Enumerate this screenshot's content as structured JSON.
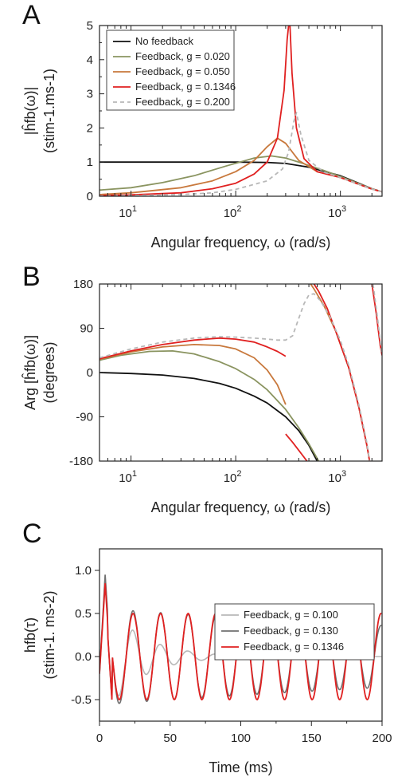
{
  "chart_data": [
    {
      "panel": "A",
      "type": "line",
      "xscale": "log",
      "xlim": [
        5,
        2500
      ],
      "ylim": [
        0,
        5
      ],
      "xlabel": "Angular frequency, ω (rad/s)",
      "ylabel_lines": [
        "|ĥfb(ω)|",
        "(stim-1.ms-1)"
      ],
      "xticks": [
        {
          "v": 10,
          "base": "10",
          "exp": "1"
        },
        {
          "v": 100,
          "base": "10",
          "exp": "2"
        },
        {
          "v": 1000,
          "base": "10",
          "exp": "3"
        }
      ],
      "yticks": [
        "0",
        "1",
        "2",
        "3",
        "4",
        "5"
      ],
      "legend_position": "top-left",
      "series": [
        {
          "name": "No feedback",
          "color": "#111111",
          "dash": "",
          "values": [
            [
              5,
              1.0
            ],
            [
              10,
              1.0
            ],
            [
              30,
              1.0
            ],
            [
              100,
              1.0
            ],
            [
              200,
              0.99
            ],
            [
              300,
              0.96
            ],
            [
              500,
              0.85
            ],
            [
              800,
              0.68
            ],
            [
              1000,
              0.6
            ],
            [
              1500,
              0.38
            ],
            [
              2000,
              0.22
            ],
            [
              2500,
              0.13
            ]
          ]
        },
        {
          "name": "Feedback, g = 0.020",
          "color": "#8a9460",
          "dash": "",
          "values": [
            [
              5,
              0.18
            ],
            [
              10,
              0.25
            ],
            [
              20,
              0.4
            ],
            [
              40,
              0.6
            ],
            [
              80,
              0.88
            ],
            [
              150,
              1.12
            ],
            [
              220,
              1.18
            ],
            [
              300,
              1.12
            ],
            [
              450,
              0.95
            ],
            [
              700,
              0.75
            ],
            [
              1000,
              0.58
            ],
            [
              1500,
              0.37
            ],
            [
              2000,
              0.22
            ],
            [
              2500,
              0.13
            ]
          ]
        },
        {
          "name": "Feedback, g = 0.050",
          "color": "#c8783c",
          "dash": "",
          "values": [
            [
              5,
              0.05
            ],
            [
              10,
              0.1
            ],
            [
              30,
              0.25
            ],
            [
              60,
              0.45
            ],
            [
              100,
              0.72
            ],
            [
              150,
              1.05
            ],
            [
              200,
              1.45
            ],
            [
              250,
              1.7
            ],
            [
              300,
              1.55
            ],
            [
              400,
              1.05
            ],
            [
              600,
              0.72
            ],
            [
              1000,
              0.55
            ],
            [
              1500,
              0.35
            ],
            [
              2000,
              0.21
            ],
            [
              2500,
              0.13
            ]
          ]
        },
        {
          "name": "Feedback, g = 0.1346",
          "color": "#e02020",
          "dash": "",
          "values": [
            [
              5,
              0.02
            ],
            [
              10,
              0.04
            ],
            [
              30,
              0.1
            ],
            [
              60,
              0.22
            ],
            [
              100,
              0.38
            ],
            [
              150,
              0.65
            ],
            [
              200,
              1.0
            ],
            [
              250,
              1.7
            ],
            [
              290,
              3.1
            ],
            [
              310,
              4.6
            ],
            [
              320,
              5.0
            ],
            [
              330,
              5.0
            ],
            [
              345,
              3.6
            ],
            [
              380,
              2.0
            ],
            [
              450,
              1.1
            ],
            [
              600,
              0.72
            ],
            [
              1000,
              0.55
            ],
            [
              1500,
              0.35
            ],
            [
              2000,
              0.21
            ],
            [
              2500,
              0.13
            ]
          ]
        },
        {
          "name": "Feedback, g = 0.200",
          "color": "#b8b8b8",
          "dash": "5,4",
          "values": [
            [
              5,
              0.01
            ],
            [
              10,
              0.02
            ],
            [
              30,
              0.05
            ],
            [
              60,
              0.1
            ],
            [
              100,
              0.2
            ],
            [
              200,
              0.45
            ],
            [
              280,
              0.8
            ],
            [
              320,
              1.3
            ],
            [
              360,
              2.2
            ],
            [
              380,
              2.45
            ],
            [
              420,
              1.8
            ],
            [
              500,
              1.05
            ],
            [
              700,
              0.7
            ],
            [
              1000,
              0.55
            ],
            [
              1500,
              0.35
            ],
            [
              2000,
              0.21
            ],
            [
              2500,
              0.13
            ]
          ]
        }
      ]
    },
    {
      "panel": "B",
      "type": "line",
      "xscale": "log",
      "xlim": [
        5,
        2500
      ],
      "ylim": [
        -180,
        180
      ],
      "xlabel": "Angular frequency, ω (rad/s)",
      "ylabel_lines": [
        "Arg [ĥfb(ω)]",
        "(degrees)"
      ],
      "xticks": [
        {
          "v": 10,
          "base": "10",
          "exp": "1"
        },
        {
          "v": 100,
          "base": "10",
          "exp": "2"
        },
        {
          "v": 1000,
          "base": "10",
          "exp": "3"
        }
      ],
      "yticks": [
        "180",
        "90",
        "0",
        "-90",
        "-180"
      ],
      "series": [
        {
          "name": "No feedback",
          "color": "#111111",
          "dash": "",
          "segments": [
            [
              [
                5,
                0
              ],
              [
                10,
                -2
              ],
              [
                20,
                -5
              ],
              [
                40,
                -12
              ],
              [
                70,
                -22
              ],
              [
                100,
                -32
              ],
              [
                150,
                -48
              ],
              [
                200,
                -62
              ],
              [
                300,
                -90
              ],
              [
                400,
                -118
              ],
              [
                500,
                -148
              ],
              [
                600,
                -180
              ]
            ]
          ]
        },
        {
          "name": "Feedback, g = 0.020",
          "color": "#8a9460",
          "dash": "",
          "segments": [
            [
              [
                5,
                25
              ],
              [
                8,
                35
              ],
              [
                15,
                43
              ],
              [
                25,
                44
              ],
              [
                40,
                38
              ],
              [
                70,
                22
              ],
              [
                100,
                8
              ],
              [
                150,
                -14
              ],
              [
                200,
                -35
              ],
              [
                300,
                -75
              ],
              [
                400,
                -112
              ],
              [
                500,
                -145
              ],
              [
                620,
                -180
              ]
            ]
          ]
        },
        {
          "name": "Feedback, g = 0.050",
          "color": "#c8783c",
          "dash": "",
          "segments": [
            [
              [
                5,
                27
              ],
              [
                10,
                42
              ],
              [
                20,
                52
              ],
              [
                40,
                57
              ],
              [
                70,
                55
              ],
              [
                100,
                48
              ],
              [
                150,
                30
              ],
              [
                200,
                5
              ],
              [
                250,
                -25
              ],
              [
                300,
                -65
              ]
            ],
            [
              [
                520,
                180
              ],
              [
                560,
                170
              ],
              [
                700,
                135
              ],
              [
                900,
                85
              ],
              [
                1200,
                10
              ],
              [
                1500,
                -70
              ],
              [
                1800,
                -150
              ],
              [
                1900,
                -180
              ]
            ]
          ]
        },
        {
          "name": "Feedback, g = 0.1346",
          "color": "#e02020",
          "dash": "",
          "segments": [
            [
              [
                5,
                28
              ],
              [
                10,
                44
              ],
              [
                20,
                57
              ],
              [
                40,
                66
              ],
              [
                70,
                70
              ],
              [
                100,
                68
              ],
              [
                150,
                62
              ],
              [
                200,
                52
              ],
              [
                250,
                43
              ],
              [
                300,
                33
              ]
            ],
            [
              [
                300,
                -125
              ],
              [
                350,
                -142
              ],
              [
                400,
                -158
              ],
              [
                460,
                -175
              ],
              [
                480,
                -180
              ]
            ],
            [
              [
                560,
                180
              ],
              [
                620,
                165
              ],
              [
                750,
                130
              ],
              [
                900,
                85
              ],
              [
                1200,
                10
              ],
              [
                1500,
                -70
              ],
              [
                1800,
                -150
              ],
              [
                1900,
                -180
              ]
            ],
            [
              [
                2000,
                180
              ],
              [
                2200,
                120
              ],
              [
                2400,
                55
              ],
              [
                2500,
                35
              ]
            ]
          ]
        },
        {
          "name": "Feedback, g = 0.200",
          "color": "#b8b8b8",
          "dash": "5,4",
          "segments": [
            [
              [
                5,
                30
              ],
              [
                10,
                48
              ],
              [
                20,
                62
              ],
              [
                40,
                70
              ],
              [
                70,
                73
              ],
              [
                100,
                72
              ],
              [
                150,
                70
              ],
              [
                200,
                68
              ],
              [
                250,
                66
              ],
              [
                300,
                66
              ],
              [
                350,
                75
              ],
              [
                400,
                110
              ],
              [
                450,
                140
              ],
              [
                500,
                158
              ],
              [
                560,
                160
              ],
              [
                650,
                145
              ],
              [
                800,
                112
              ],
              [
                1000,
                65
              ],
              [
                1200,
                15
              ],
              [
                1500,
                -65
              ],
              [
                1800,
                -145
              ],
              [
                1900,
                -180
              ]
            ],
            [
              [
                2050,
                180
              ],
              [
                2250,
                115
              ],
              [
                2500,
                35
              ]
            ]
          ]
        }
      ]
    },
    {
      "panel": "C",
      "type": "line",
      "xscale": "linear",
      "xlim": [
        0,
        200
      ],
      "ylim": [
        -0.75,
        1.25
      ],
      "xlabel": "Time (ms)",
      "ylabel_lines": [
        "hfb(τ)",
        "(stim-1. ms-2)"
      ],
      "xticks": [
        {
          "v": 0,
          "label": "0"
        },
        {
          "v": 50,
          "label": "50"
        },
        {
          "v": 100,
          "label": "100"
        },
        {
          "v": 150,
          "label": "150"
        },
        {
          "v": 200,
          "label": "200"
        }
      ],
      "yticks": [
        {
          "v": 1.0,
          "label": "1.0"
        },
        {
          "v": 0.5,
          "label": "0.5"
        },
        {
          "v": 0.0,
          "label": "0.0"
        },
        {
          "v": -0.5,
          "label": "-0.5"
        }
      ],
      "legend_position": "top-right",
      "period_ms": 19.5,
      "series": [
        {
          "name": "Feedback, g = 0.100",
          "color": "#b8b8b8",
          "peak": 0.95,
          "amp": 0.5,
          "decay_ms": 25
        },
        {
          "name": "Feedback, g = 0.130",
          "color": "#707070",
          "peak": 0.95,
          "amp": 0.55,
          "decay_ms": 450
        },
        {
          "name": "Feedback, g = 0.1346",
          "color": "#e02020",
          "peak": 0.85,
          "amp": 0.5,
          "decay_ms": 0
        }
      ]
    }
  ]
}
